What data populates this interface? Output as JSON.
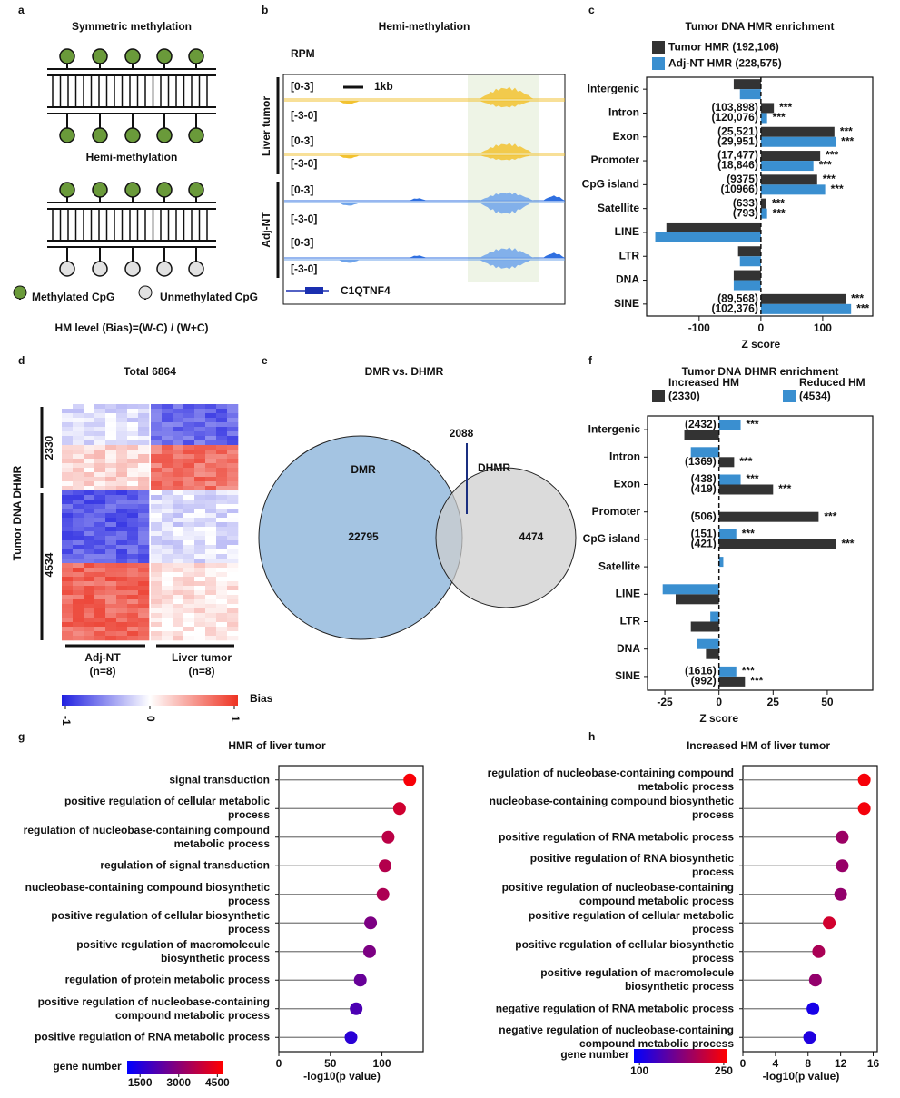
{
  "panel_a": {
    "letter": "a",
    "title": "Symmetric methylation",
    "subtitle": "Hemi-methylation",
    "legend": [
      "Methylated CpG",
      "Unmethylated CpG"
    ],
    "formula": "HM level (Bias)=(W-C) / (W+C)"
  },
  "panel_b": {
    "letter": "b",
    "title": "Hemi-methylation",
    "unit": "RPM",
    "scale": "1kb",
    "groups": [
      "Liver tumor",
      "Adj-NT"
    ],
    "tracks": [
      {
        "top": "[0-3]",
        "bottom": "[-3-0]"
      },
      {
        "top": "[0-3]",
        "bottom": "[-3-0]"
      },
      {
        "top": "[0-3]",
        "bottom": "[-3-0]"
      },
      {
        "top": "[0-3]",
        "bottom": "[-3-0]"
      }
    ],
    "gene": "C1QTNF4"
  },
  "panel_d": {
    "letter": "d",
    "title": "Total 6864",
    "ylabel": "Tumor DNA DHMR",
    "row_groups": [
      "2330",
      "4534"
    ],
    "columns": [
      "Adj-NT\n(n=8)",
      "Liver tumor\n(n=8)"
    ],
    "colorbar": {
      "ticks": [
        -1,
        0,
        1
      ],
      "label": "Bias"
    }
  },
  "panel_e": {
    "letter": "e",
    "title": "DMR vs. DHMR",
    "sets": [
      "DMR",
      "DHMR"
    ],
    "dmr_only": "22795",
    "dhmr_only": "4474",
    "overlap": "2088"
  },
  "chart_data": [
    {
      "letter": "c",
      "type": "bar",
      "orientation": "horizontal",
      "title": "Tumor DNA HMR enrichment",
      "xlabel": "Z score",
      "categories": [
        "Intergenic",
        "Intron",
        "Exon",
        "Promoter",
        "CpG island",
        "Satellite",
        "LINE",
        "LTR",
        "DNA",
        "SINE"
      ],
      "series": [
        {
          "name": "Tumor HMR (192,106)",
          "color": "#333333",
          "values": [
            -44,
            21,
            119,
            96,
            91,
            9,
            -153,
            -37,
            -44,
            137
          ],
          "counts": [
            null,
            "(103,898)",
            "(25,521)",
            "(17,477)",
            "(9375)",
            "(633)",
            null,
            null,
            null,
            "(89,568)"
          ],
          "significance": [
            null,
            "***",
            "***",
            "***",
            "***",
            "***",
            null,
            null,
            null,
            "***"
          ]
        },
        {
          "name": "Adj-NT HMR (228,575)",
          "color": "#3a8fd0",
          "values": [
            -34,
            10,
            121,
            85,
            104,
            10,
            -171,
            -34,
            -44,
            146
          ],
          "counts": [
            null,
            "(120,076)",
            "(29,951)",
            "(18,846)",
            "(10966)",
            "(793)",
            null,
            null,
            null,
            "(102,376)"
          ],
          "significance": [
            null,
            "***",
            "***",
            "***",
            "***",
            "***",
            null,
            null,
            null,
            "***"
          ]
        }
      ],
      "xlim": [
        -185,
        181
      ],
      "xticks": [
        -100,
        0,
        100
      ]
    },
    {
      "letter": "f",
      "type": "bar",
      "orientation": "horizontal",
      "title": "Tumor DNA DHMR enrichment",
      "xlabel": "Z score",
      "categories": [
        "Intergenic",
        "Intron",
        "Exon",
        "Promoter",
        "CpG island",
        "Satellite",
        "LINE",
        "LTR",
        "DNA",
        "SINE"
      ],
      "series": [
        {
          "name": "Increased HM\n(2330)",
          "color": "#333333",
          "values": [
            -16,
            7,
            25,
            46,
            54,
            0,
            -20,
            -13,
            -6,
            12
          ],
          "counts": [
            null,
            "(1369)",
            "(419)",
            "(506)",
            "(421)",
            null,
            null,
            null,
            null,
            "(992)"
          ],
          "significance": [
            null,
            "***",
            "***",
            "***",
            "***",
            null,
            null,
            null,
            null,
            "***"
          ]
        },
        {
          "name": "Reduced HM\n(4534)",
          "color": "#3a8fd0",
          "values": [
            10,
            -13,
            10,
            0,
            8,
            2,
            -26,
            -4,
            -10,
            8
          ],
          "counts": [
            "(2432)",
            null,
            "(438)",
            null,
            "(151)",
            null,
            null,
            null,
            null,
            "(1616)"
          ],
          "significance": [
            "***",
            null,
            "***",
            null,
            "***",
            null,
            null,
            null,
            null,
            "***"
          ]
        }
      ],
      "xlim": [
        -33,
        71
      ],
      "xticks": [
        -25,
        0,
        25,
        50
      ]
    },
    {
      "letter": "g",
      "type": "lollipop",
      "title": "HMR of liver tumor",
      "xlabel": "-log10(p value)",
      "colorbar_label": "gene number",
      "categories": [
        "signal transduction",
        "positive regulation of cellular metabolic\nprocess",
        "regulation of nucleobase-containing compound\nmetabolic process",
        "regulation of signal transduction",
        "nucleobase-containing compound biosynthetic\nprocess",
        "positive regulation of cellular biosynthetic\nprocess",
        "positive regulation of macromolecule\nbiosynthetic process",
        "regulation of protein metabolic process",
        "positive regulation of nucleobase-containing\ncompound metabolic process",
        "positive regulation of RNA metabolic process"
      ],
      "values": [
        127,
        117,
        106,
        103,
        101,
        89,
        88,
        79,
        75,
        70
      ],
      "color_values": [
        4600,
        4000,
        3700,
        3600,
        3500,
        2800,
        2800,
        2500,
        2100,
        1600
      ],
      "xlim": [
        0,
        140
      ],
      "xticks": [
        0,
        50,
        100
      ],
      "clim": [
        1000,
        4700
      ],
      "cticks": [
        1500,
        3000,
        4500
      ]
    },
    {
      "letter": "h",
      "type": "lollipop",
      "title": "Increased HM of liver tumor",
      "xlabel": "-log10(p value)",
      "colorbar_label": "gene number",
      "categories": [
        "regulation of nucleobase-containing compound\nmetabolic process",
        "nucleobase-containing compound biosynthetic\nprocess",
        "positive regulation of RNA metabolic process",
        "positive regulation of RNA biosynthetic\nprocess",
        "positive regulation of nucleobase-containing\ncompound metabolic process",
        "positive regulation of cellular metabolic\nprocess",
        "positive regulation of cellular biosynthetic\nprocess",
        "positive regulation of macromolecule\nbiosynthetic process",
        "negative regulation of RNA metabolic process",
        "negative regulation of nucleobase-containing\ncompound metabolic process"
      ],
      "values": [
        14.9,
        14.9,
        12.2,
        12.2,
        12.0,
        10.6,
        9.3,
        8.9,
        8.6,
        8.2
      ],
      "color_values": [
        250,
        248,
        190,
        188,
        185,
        225,
        200,
        185,
        105,
        110
      ],
      "xlim": [
        0,
        16.5
      ],
      "xticks": [
        0,
        4,
        8,
        12,
        16
      ],
      "clim": [
        90,
        255
      ],
      "cticks": [
        100,
        250
      ]
    }
  ]
}
